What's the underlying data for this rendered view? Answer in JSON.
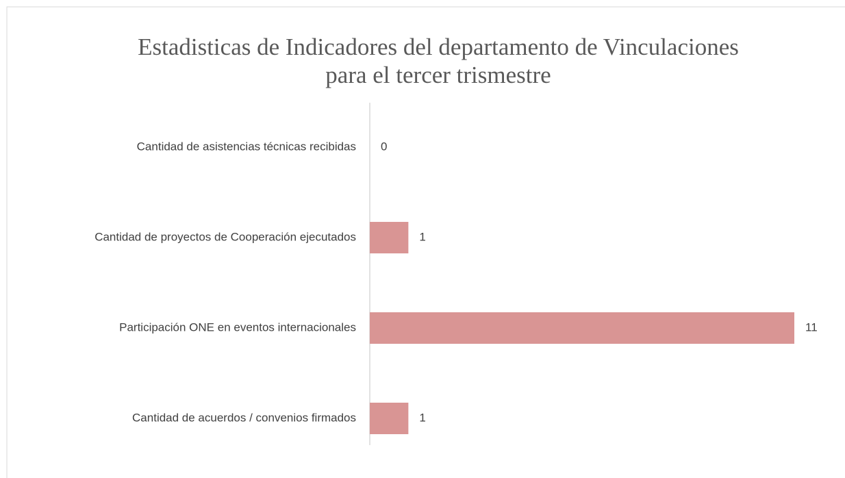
{
  "chart_data": {
    "type": "bar",
    "orientation": "horizontal",
    "title": [
      "Estadisticas de Indicadores del departamento de Vinculaciones",
      "para el tercer trismestre"
    ],
    "categories": [
      "Cantidad de asistencias técnicas recibidas",
      "Cantidad de proyectos de Cooperación ejecutados",
      "Participación ONE en eventos internacionales",
      "Cantidad de acuerdos / convenios firmados"
    ],
    "values": [
      0,
      1,
      11,
      1
    ],
    "color": "#d99594"
  }
}
